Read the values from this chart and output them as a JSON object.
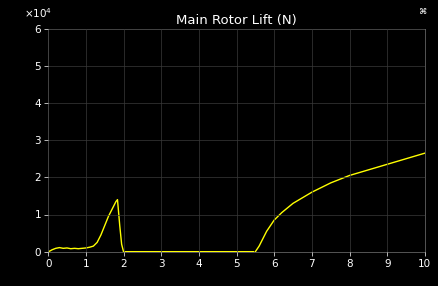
{
  "title": "Main Rotor Lift (N)",
  "bg_color": "#000000",
  "line_color": "#ffff00",
  "xlim": [
    0,
    10
  ],
  "ylim": [
    0,
    60000
  ],
  "yticks": [
    0,
    10000,
    20000,
    30000,
    40000,
    50000,
    60000
  ],
  "xticks": [
    0,
    1,
    2,
    3,
    4,
    5,
    6,
    7,
    8,
    9,
    10
  ],
  "grid_color": "#3a3a3a",
  "title_color": "#ffffff",
  "tick_color": "#ffffff",
  "spine_color": "#777777",
  "seg1_t": [
    0.0,
    0.05,
    0.1,
    0.15,
    0.2,
    0.25,
    0.3,
    0.4,
    0.5,
    0.6,
    0.7,
    0.8,
    0.9,
    1.0,
    1.1,
    1.2,
    1.3,
    1.4,
    1.5,
    1.6,
    1.7,
    1.8,
    1.84,
    1.9,
    1.95,
    2.0
  ],
  "seg1_y": [
    0,
    200,
    500,
    700,
    900,
    1000,
    1100,
    900,
    1000,
    800,
    900,
    800,
    900,
    1000,
    1200,
    1500,
    2500,
    4500,
    7000,
    9500,
    11500,
    13500,
    14000,
    7000,
    2000,
    0
  ],
  "seg2_t": [
    2.0,
    2.5,
    3.0,
    3.5,
    4.0,
    4.5,
    5.0,
    5.45
  ],
  "seg2_y": [
    0,
    0,
    0,
    0,
    0,
    0,
    0,
    0
  ],
  "seg3_t": [
    5.5,
    5.6,
    5.7,
    5.8,
    5.9,
    6.0,
    6.2,
    6.5,
    7.0,
    7.5,
    8.0,
    8.5,
    9.0,
    9.5,
    10.0
  ],
  "seg3_y": [
    0,
    1500,
    3500,
    5500,
    7000,
    8500,
    10500,
    13000,
    16000,
    18500,
    20500,
    22000,
    23500,
    25000,
    26500
  ]
}
